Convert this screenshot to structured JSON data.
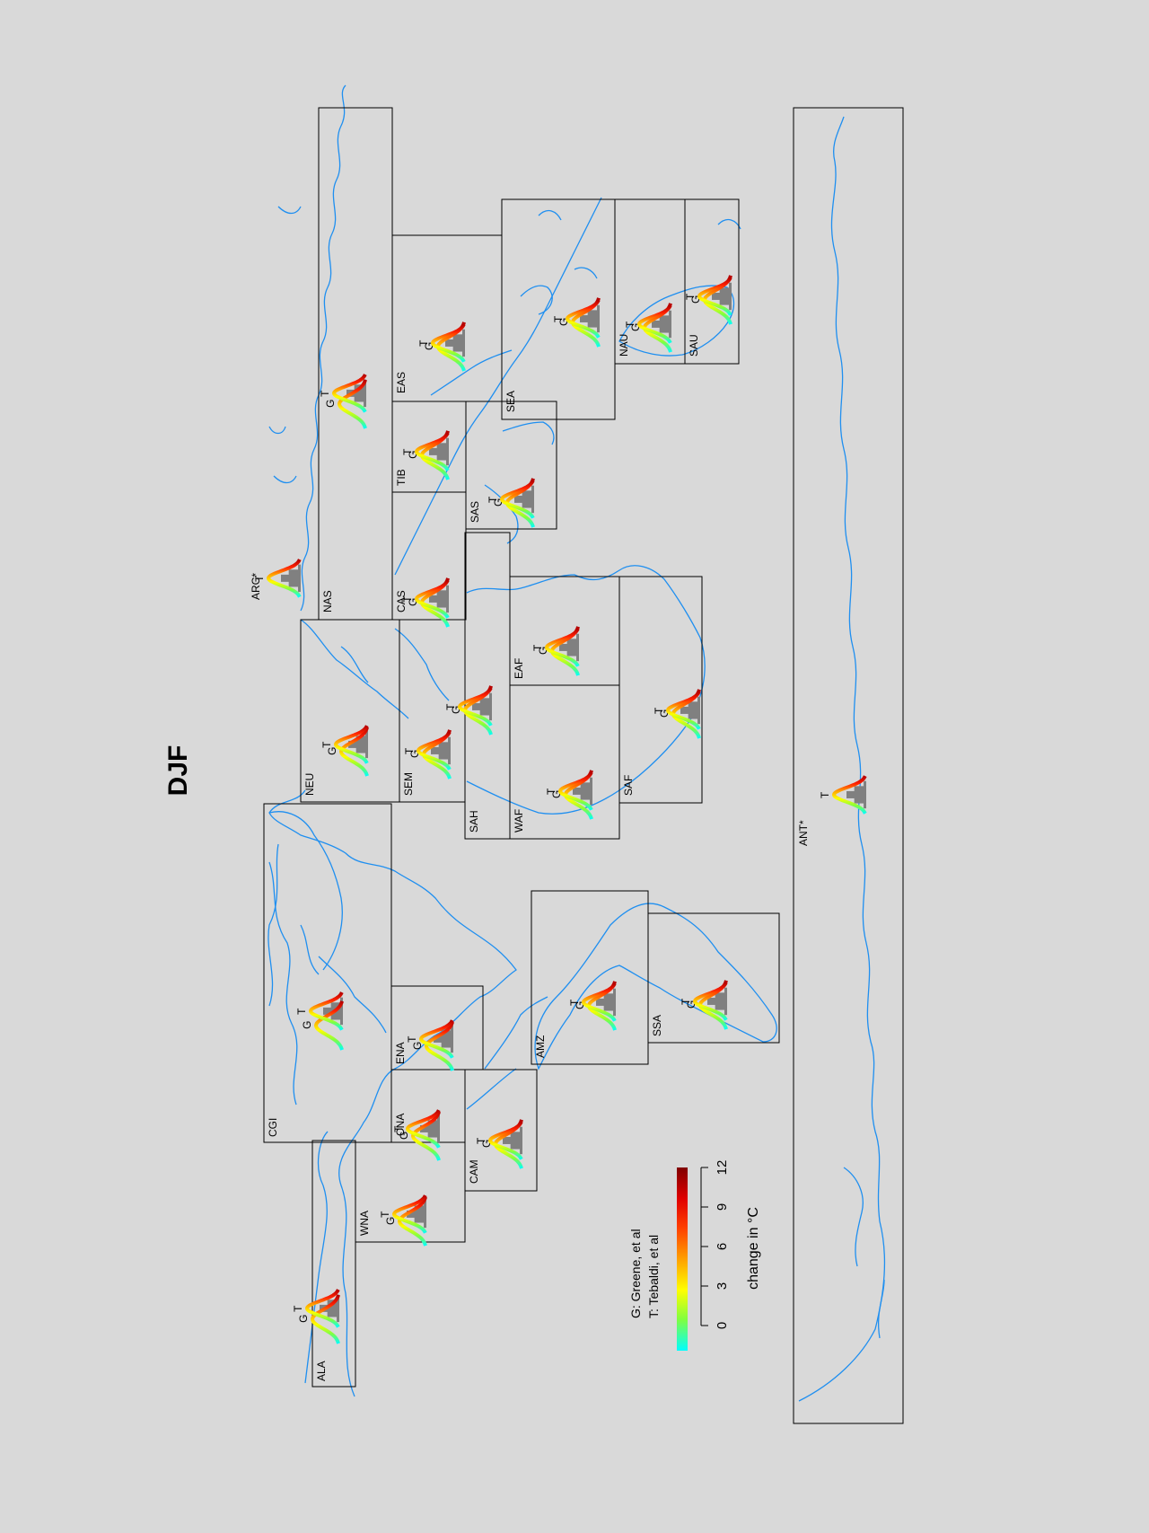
{
  "title": "DJF",
  "legend": {
    "greene": "G: Greene, et al",
    "tebaldi": "T: Tebaldi, et al",
    "title": "change in °C",
    "ticks": [
      "0",
      "3",
      "6",
      "9",
      "12"
    ]
  },
  "colors": {
    "background": "#d9d9d9",
    "coastline": "#1f8ff0",
    "histogram": "#808080",
    "scale": [
      "#00ffff",
      "#80ff40",
      "#ffff00",
      "#ffc000",
      "#ff8000",
      "#ff2000",
      "#a00000"
    ]
  },
  "regions": [
    {
      "code": "ALA"
    },
    {
      "code": "CGI"
    },
    {
      "code": "WNA"
    },
    {
      "code": "CNA"
    },
    {
      "code": "ENA"
    },
    {
      "code": "CAM"
    },
    {
      "code": "AMZ"
    },
    {
      "code": "SSA"
    },
    {
      "code": "NEU"
    },
    {
      "code": "SEM"
    },
    {
      "code": "SAH"
    },
    {
      "code": "WAF"
    },
    {
      "code": "EAF"
    },
    {
      "code": "SAF"
    },
    {
      "code": "NAS"
    },
    {
      "code": "CAS"
    },
    {
      "code": "TIB"
    },
    {
      "code": "SAS"
    },
    {
      "code": "EAS"
    },
    {
      "code": "SEA"
    },
    {
      "code": "NAU"
    },
    {
      "code": "SAU"
    },
    {
      "code": "ARC*"
    },
    {
      "code": "ANT*"
    }
  ],
  "chart_data": {
    "type": "density",
    "series_labels": {
      "G": "G",
      "T": "T"
    },
    "x_unit": "°C",
    "xlim": [
      0,
      12
    ],
    "regions": [
      {
        "code": "ALA",
        "g_peak": 4.5,
        "t_peak": 6.0
      },
      {
        "code": "CGI",
        "g_peak": 3.5,
        "t_peak": 5.5
      },
      {
        "code": "WNA",
        "g_peak": 2.5,
        "t_peak": 3.5
      },
      {
        "code": "CNA",
        "g_peak": 2.5,
        "t_peak": 3.5
      },
      {
        "code": "ENA",
        "g_peak": 2.5,
        "t_peak": 3.5
      },
      {
        "code": "CAM",
        "g_peak": 2.0,
        "t_peak": 2.5
      },
      {
        "code": "AMZ",
        "g_peak": 2.5,
        "t_peak": 3.0
      },
      {
        "code": "SSA",
        "g_peak": 2.0,
        "t_peak": 2.5
      },
      {
        "code": "NEU",
        "g_peak": 3.5,
        "t_peak": 4.5
      },
      {
        "code": "SEM",
        "g_peak": 2.5,
        "t_peak": 3.0
      },
      {
        "code": "SAH",
        "g_peak": 3.0,
        "t_peak": 3.5
      },
      {
        "code": "WAF",
        "g_peak": 2.5,
        "t_peak": 3.0
      },
      {
        "code": "EAF",
        "g_peak": 2.5,
        "t_peak": 3.0
      },
      {
        "code": "SAF",
        "g_peak": 2.5,
        "t_peak": 3.0
      },
      {
        "code": "NAS",
        "g_peak": 5.0,
        "t_peak": 6.5
      },
      {
        "code": "CAS",
        "g_peak": 3.0,
        "t_peak": 3.5
      },
      {
        "code": "TIB",
        "g_peak": 3.5,
        "t_peak": 4.0
      },
      {
        "code": "SAS",
        "g_peak": 2.5,
        "t_peak": 3.0
      },
      {
        "code": "EAS",
        "g_peak": 3.0,
        "t_peak": 3.5
      },
      {
        "code": "SEA",
        "g_peak": 2.0,
        "t_peak": 2.5
      },
      {
        "code": "NAU",
        "g_peak": 2.5,
        "t_peak": 3.0
      },
      {
        "code": "SAU",
        "g_peak": 2.0,
        "t_peak": 2.5
      },
      {
        "code": "ARC*",
        "g_peak": null,
        "t_peak": 7.0
      },
      {
        "code": "ANT*",
        "g_peak": null,
        "t_peak": 2.5
      }
    ]
  }
}
